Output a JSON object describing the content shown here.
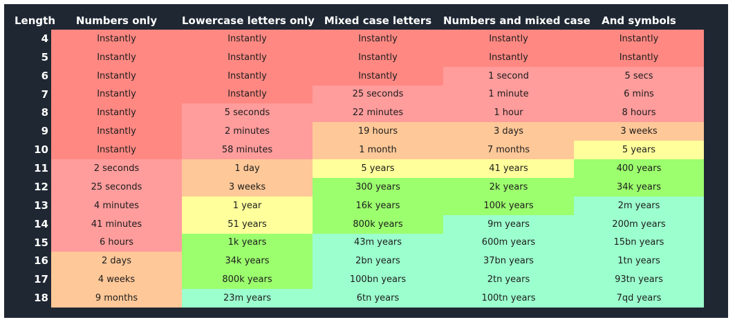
{
  "colors": {
    "panel": "#1f2733",
    "instant": "#ff8882",
    "fast": "#ff9c9c",
    "hours_to_months": "#ffc898",
    "years": "#ffff9c",
    "hundreds_to_thousands_of_years": "#9cff6e",
    "millions_plus_years": "#9cffce"
  },
  "headers": [
    "Length",
    "Numbers only",
    "Lowercase letters only",
    "Mixed case letters",
    "Numbers and mixed case",
    "And symbols"
  ],
  "chart_data": {
    "type": "table",
    "columns": [
      "Numbers only",
      "Lowercase letters only",
      "Mixed case letters",
      "Numbers and mixed case",
      "And symbols"
    ],
    "rows": [
      {
        "length": "4",
        "cells": [
          "Instantly",
          "Instantly",
          "Instantly",
          "Instantly",
          "Instantly"
        ],
        "tiers": [
          "instant",
          "instant",
          "instant",
          "instant",
          "instant"
        ]
      },
      {
        "length": "5",
        "cells": [
          "Instantly",
          "Instantly",
          "Instantly",
          "Instantly",
          "Instantly"
        ],
        "tiers": [
          "instant",
          "instant",
          "instant",
          "instant",
          "instant"
        ]
      },
      {
        "length": "6",
        "cells": [
          "Instantly",
          "Instantly",
          "Instantly",
          "1 second",
          "5 secs"
        ],
        "tiers": [
          "instant",
          "instant",
          "instant",
          "fast",
          "fast"
        ]
      },
      {
        "length": "7",
        "cells": [
          "Instantly",
          "Instantly",
          "25 seconds",
          "1 minute",
          "6 mins"
        ],
        "tiers": [
          "instant",
          "instant",
          "fast",
          "fast",
          "fast"
        ]
      },
      {
        "length": "8",
        "cells": [
          "Instantly",
          "5 seconds",
          "22 minutes",
          "1 hour",
          "8 hours"
        ],
        "tiers": [
          "instant",
          "fast",
          "fast",
          "fast",
          "fast"
        ]
      },
      {
        "length": "9",
        "cells": [
          "Instantly",
          "2 minutes",
          "19 hours",
          "3 days",
          "3 weeks"
        ],
        "tiers": [
          "instant",
          "fast",
          "hours_to_months",
          "hours_to_months",
          "hours_to_months"
        ]
      },
      {
        "length": "10",
        "cells": [
          "Instantly",
          "58 minutes",
          "1 month",
          "7 months",
          "5 years"
        ],
        "tiers": [
          "instant",
          "fast",
          "hours_to_months",
          "hours_to_months",
          "years"
        ]
      },
      {
        "length": "11",
        "cells": [
          "2 seconds",
          "1 day",
          "5 years",
          "41 years",
          "400 years"
        ],
        "tiers": [
          "fast",
          "hours_to_months",
          "years",
          "years",
          "hundreds_to_thousands_of_years"
        ]
      },
      {
        "length": "12",
        "cells": [
          "25 seconds",
          "3 weeks",
          "300 years",
          "2k years",
          "34k years"
        ],
        "tiers": [
          "fast",
          "hours_to_months",
          "hundreds_to_thousands_of_years",
          "hundreds_to_thousands_of_years",
          "hundreds_to_thousands_of_years"
        ]
      },
      {
        "length": "13",
        "cells": [
          "4 minutes",
          "1 year",
          "16k years",
          "100k years",
          "2m years"
        ],
        "tiers": [
          "fast",
          "years",
          "hundreds_to_thousands_of_years",
          "hundreds_to_thousands_of_years",
          "millions_plus_years"
        ]
      },
      {
        "length": "14",
        "cells": [
          "41 minutes",
          "51 years",
          "800k years",
          "9m years",
          "200m years"
        ],
        "tiers": [
          "fast",
          "years",
          "hundreds_to_thousands_of_years",
          "millions_plus_years",
          "millions_plus_years"
        ]
      },
      {
        "length": "15",
        "cells": [
          "6 hours",
          "1k years",
          "43m years",
          "600m years",
          "15bn years"
        ],
        "tiers": [
          "fast",
          "hundreds_to_thousands_of_years",
          "millions_plus_years",
          "millions_plus_years",
          "millions_plus_years"
        ]
      },
      {
        "length": "16",
        "cells": [
          "2 days",
          "34k years",
          "2bn years",
          "37bn years",
          "1tn years"
        ],
        "tiers": [
          "hours_to_months",
          "hundreds_to_thousands_of_years",
          "millions_plus_years",
          "millions_plus_years",
          "millions_plus_years"
        ]
      },
      {
        "length": "17",
        "cells": [
          "4 weeks",
          "800k years",
          "100bn years",
          "2tn years",
          "93tn years"
        ],
        "tiers": [
          "hours_to_months",
          "hundreds_to_thousands_of_years",
          "millions_plus_years",
          "millions_plus_years",
          "millions_plus_years"
        ]
      },
      {
        "length": "18",
        "cells": [
          "9 months",
          "23m years",
          "6tn years",
          "100tn years",
          "7qd years"
        ],
        "tiers": [
          "hours_to_months",
          "millions_plus_years",
          "millions_plus_years",
          "millions_plus_years",
          "millions_plus_years"
        ]
      }
    ]
  }
}
